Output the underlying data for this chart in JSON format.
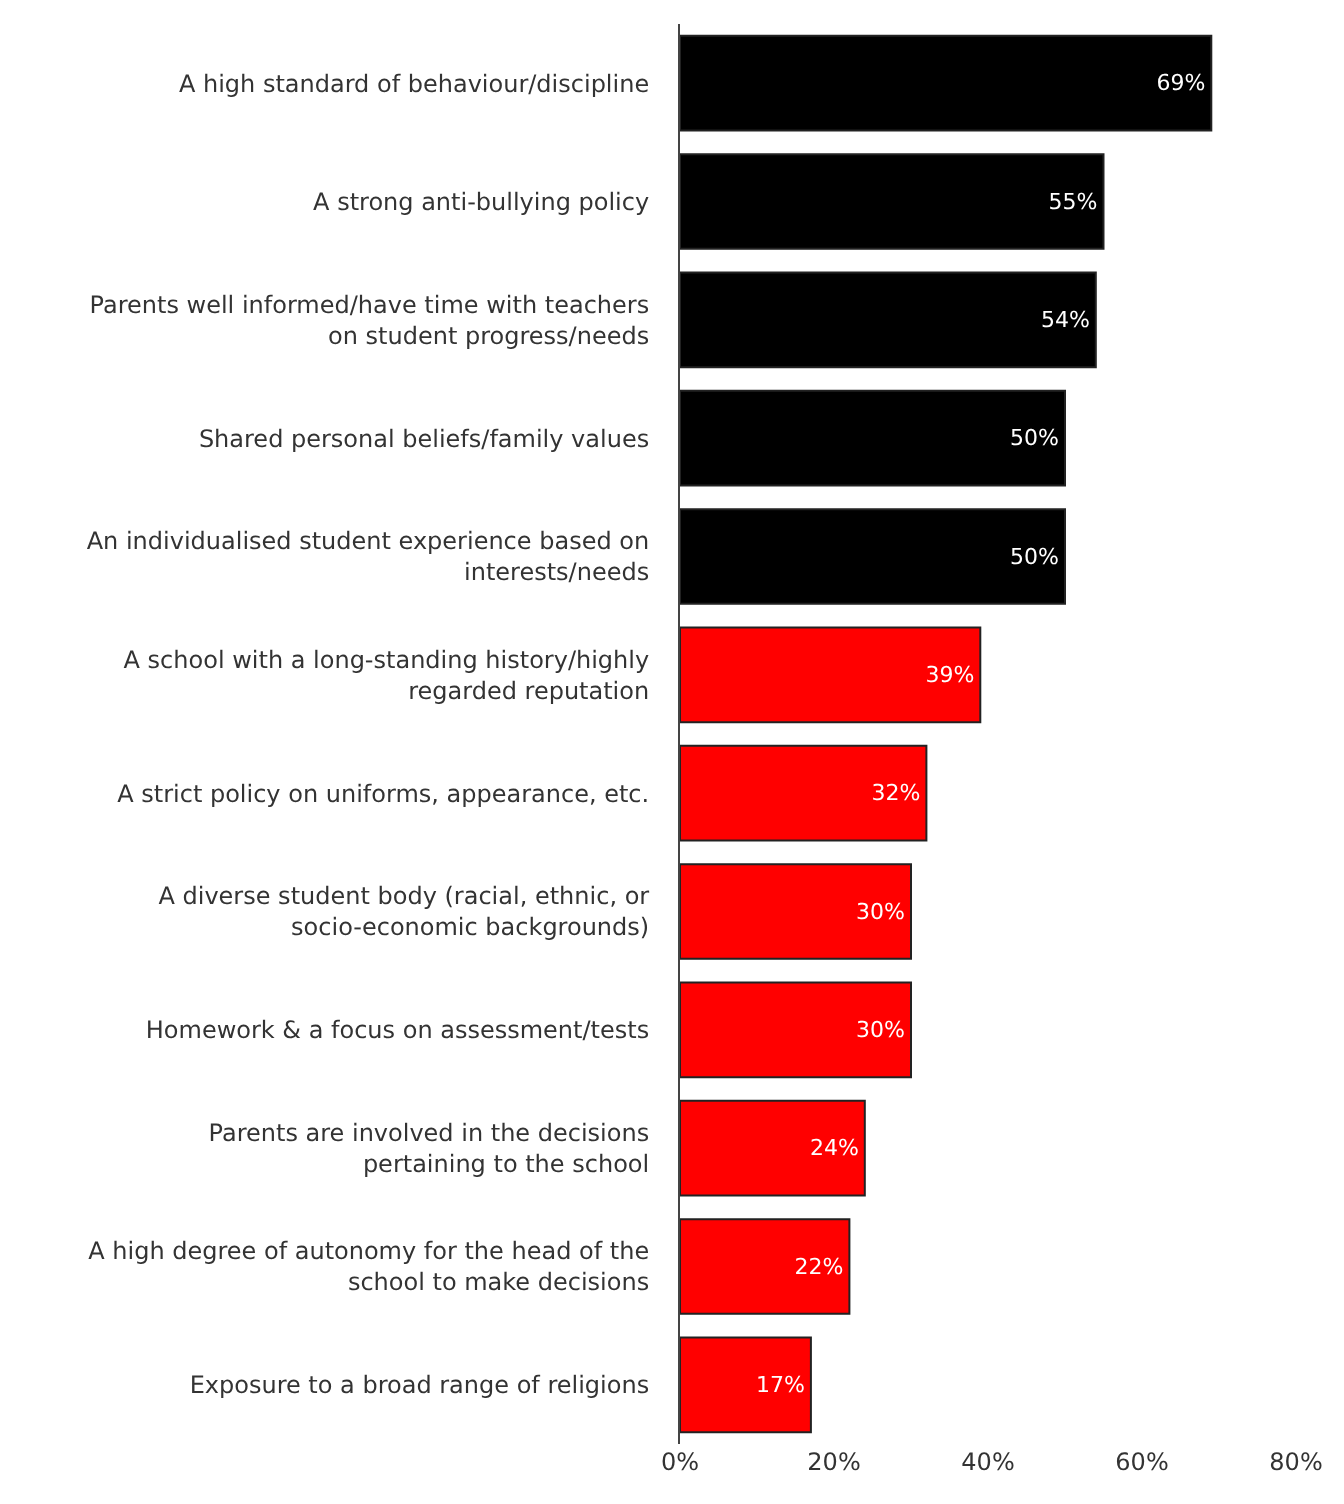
{
  "chart_data": {
    "type": "bar",
    "orientation": "horizontal",
    "categories": [
      "A high standard of behaviour/discipline",
      "A strong anti-bullying policy",
      "Parents well informed/have time with teachers on student progress/needs",
      "Shared personal beliefs/family values",
      "An individualised student experience based on interests/needs",
      "A school with a long-standing history/highly regarded reputation",
      "A strict policy on uniforms, appearance, etc.",
      "A diverse student body (racial, ethnic, or socio-economic backgrounds)",
      "Homework & a focus on assessment/tests",
      "Parents are involved in the decisions pertaining to the school",
      "A high degree of autonomy for the head of the school to make decisions",
      "Exposure to a broad range of religions"
    ],
    "values": [
      69,
      55,
      54,
      50,
      50,
      39,
      32,
      30,
      30,
      24,
      22,
      17
    ],
    "value_labels": [
      "69%",
      "55%",
      "54%",
      "50%",
      "50%",
      "39%",
      "32%",
      "30%",
      "30%",
      "24%",
      "22%",
      "17%"
    ],
    "colors": [
      "#000000",
      "#000000",
      "#000000",
      "#000000",
      "#000000",
      "#ff0000",
      "#ff0000",
      "#ff0000",
      "#ff0000",
      "#ff0000",
      "#ff0000",
      "#ff0000"
    ],
    "xlim": [
      0,
      80
    ],
    "xticks": [
      {
        "value": 0,
        "label": "0%"
      },
      {
        "value": 20,
        "label": "20%"
      },
      {
        "value": 40,
        "label": "40%"
      },
      {
        "value": 60,
        "label": "60%"
      },
      {
        "value": 80,
        "label": "80%"
      }
    ],
    "grid": false,
    "legend": false
  }
}
